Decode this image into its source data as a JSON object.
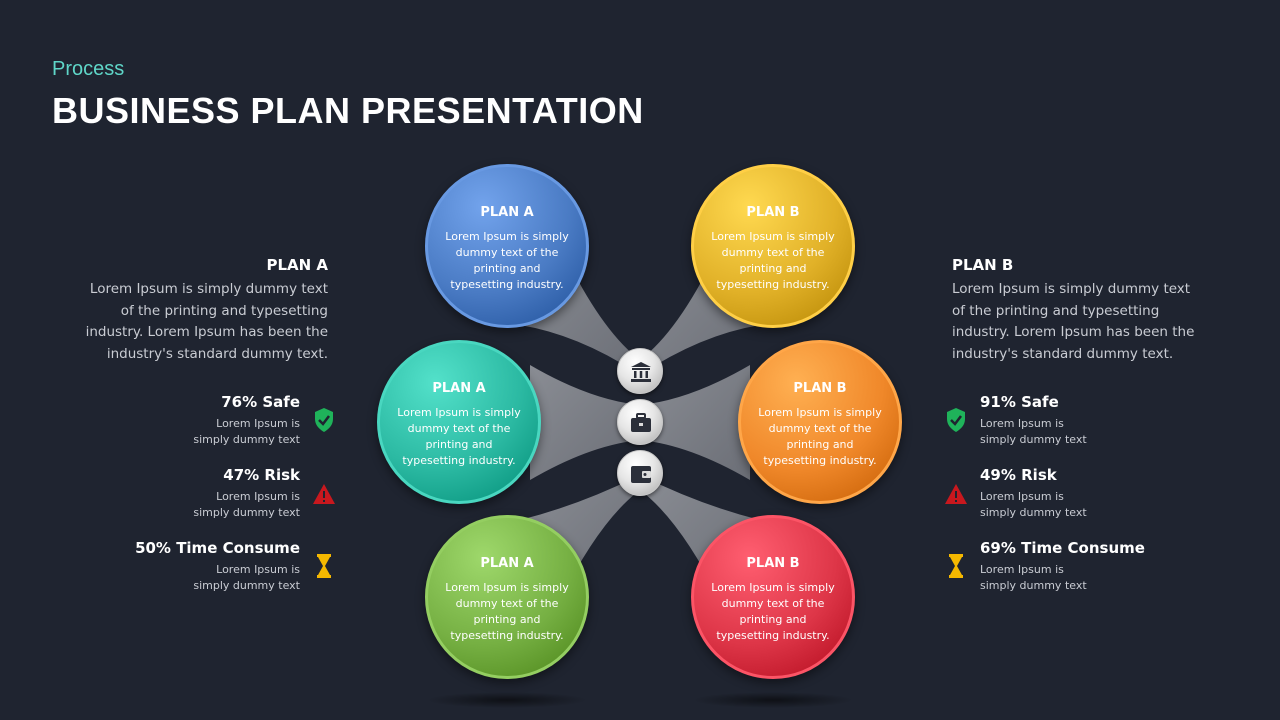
{
  "header": {
    "subtitle": "Process",
    "title": "BUSINESS PLAN PRESENTATION"
  },
  "circles": [
    {
      "title": "PLAN A",
      "text": "Lorem Ipsum is simply dummy text of the printing and typesetting industry.",
      "color": "#4a7bc4"
    },
    {
      "title": "PLAN A",
      "text": "Lorem Ipsum is simply dummy text of the printing and typesetting industry.",
      "color": "#2bb9a2"
    },
    {
      "title": "PLAN A",
      "text": "Lorem Ipsum is simply dummy text of the printing and typesetting industry.",
      "color": "#76b043"
    },
    {
      "title": "PLAN B",
      "text": "Lorem Ipsum is simply dummy text of the printing and typesetting industry.",
      "color": "#e1b128"
    },
    {
      "title": "PLAN B",
      "text": "Lorem Ipsum is simply dummy text of the printing and typesetting industry.",
      "color": "#f0882a"
    },
    {
      "title": "PLAN B",
      "text": "Lorem Ipsum is simply dummy text of the printing and typesetting industry.",
      "color": "#de3648"
    }
  ],
  "hub_icons": [
    "bank-icon",
    "briefcase-icon",
    "wallet-icon"
  ],
  "left": {
    "title": "PLAN A",
    "text": "Lorem Ipsum is simply dummy text of the printing and typesetting industry. Lorem Ipsum has been the industry's standard dummy text.",
    "stats": [
      {
        "label": "76% Safe",
        "text": "Lorem Ipsum is simply dummy text",
        "icon": "shield-check-icon",
        "color": "#1fb35a"
      },
      {
        "label": "47% Risk",
        "text": "Lorem Ipsum is simply dummy text",
        "icon": "warning-icon",
        "color": "#c8181e"
      },
      {
        "label": "50% Time Consume",
        "text": "Lorem Ipsum is simply dummy text",
        "icon": "hourglass-icon",
        "color": "#f5b800"
      }
    ]
  },
  "right": {
    "title": "PLAN B",
    "text": "Lorem Ipsum is simply dummy text of the printing and typesetting industry. Lorem Ipsum has been the industry's standard dummy text.",
    "stats": [
      {
        "label": "91% Safe",
        "text": "Lorem Ipsum is simply dummy text",
        "icon": "shield-check-icon",
        "color": "#1fb35a"
      },
      {
        "label": "49% Risk",
        "text": "Lorem Ipsum is simply dummy text",
        "icon": "warning-icon",
        "color": "#c8181e"
      },
      {
        "label": "69% Time Consume",
        "text": "Lorem Ipsum is simply dummy text",
        "icon": "hourglass-icon",
        "color": "#f5b800"
      }
    ]
  }
}
